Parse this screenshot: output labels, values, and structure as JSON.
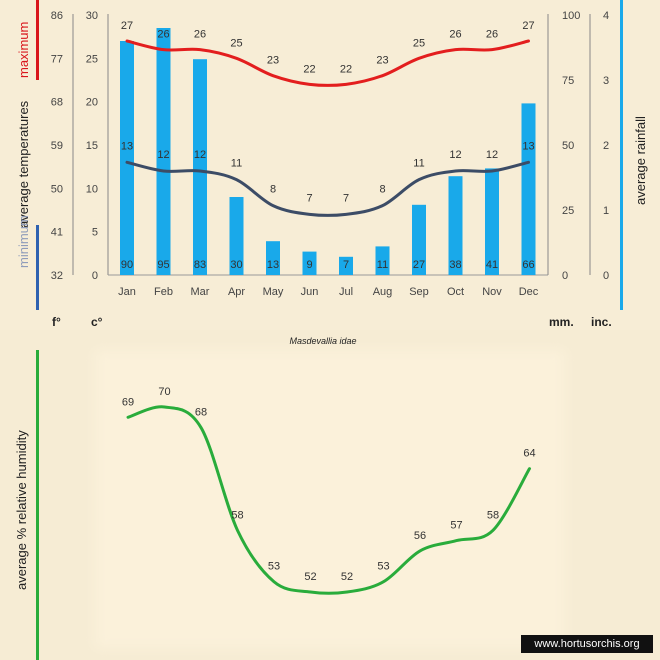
{
  "chart_data": [
    {
      "type": "bar",
      "title": "Masdevallia idae",
      "categories": [
        "Jan",
        "Feb",
        "Mar",
        "Apr",
        "May",
        "Jun",
        "Jul",
        "Aug",
        "Sep",
        "Oct",
        "Nov",
        "Dec"
      ],
      "series": [
        {
          "name": "average rainfall (mm.)",
          "kind": "bar",
          "axis": "rain",
          "values": [
            90,
            95,
            83,
            30,
            13,
            9,
            7,
            11,
            27,
            38,
            41,
            66
          ]
        },
        {
          "name": "maximum average temperature (c°)",
          "kind": "line",
          "axis": "temp",
          "values": [
            27,
            26,
            26,
            25,
            23,
            22,
            22,
            23,
            25,
            26,
            26,
            27
          ]
        },
        {
          "name": "minimum average temperature (c°)",
          "kind": "line",
          "axis": "temp",
          "values": [
            13,
            12,
            12,
            11,
            8,
            7,
            7,
            8,
            11,
            12,
            12,
            13
          ]
        }
      ],
      "axes": {
        "fahrenheit": {
          "ticks": [
            "86",
            "77",
            "68",
            "59",
            "50",
            "41",
            "32"
          ],
          "unit": "f°"
        },
        "celsius": {
          "ticks": [
            "30",
            "25",
            "20",
            "15",
            "10",
            "5",
            "0"
          ],
          "unit": "c°",
          "range": [
            0,
            30
          ]
        },
        "rain_mm": {
          "ticks": [
            "100",
            "75",
            "50",
            "25",
            "0"
          ],
          "unit": "mm.",
          "range": [
            0,
            100
          ]
        },
        "rain_inch": {
          "ticks": [
            "4",
            "3",
            "2",
            "1",
            "0"
          ],
          "unit": "inc."
        }
      },
      "ylabel_left_max": "maximum",
      "ylabel_left_mid": "average temperatures",
      "ylabel_left_min": "minimum",
      "ylabel_right": "average rainfall",
      "colors": {
        "bars": "#19a9ea",
        "max_line": "#e31e1e",
        "min_line": "#3c4c66",
        "bar_left_red": "#d9161c",
        "bar_left_blue": "#2f62b0",
        "bar_right": "#19a9ea"
      }
    },
    {
      "type": "line",
      "categories": [
        "Jan",
        "Feb",
        "Mar",
        "Apr",
        "May",
        "Jun",
        "Jul",
        "Aug",
        "Sep",
        "Oct",
        "Nov",
        "Dec"
      ],
      "series": [
        {
          "name": "average % relative humidity",
          "values": [
            69,
            70,
            68,
            58,
            53,
            52,
            52,
            53,
            56,
            57,
            58,
            64
          ]
        }
      ],
      "ylabel": "average %  relative humidity",
      "ylim": [
        48,
        74
      ],
      "colors": {
        "line": "#29ac3b",
        "bar_left": "#29ac3b"
      }
    }
  ],
  "footer": {
    "watermark": "www.hortusorchis.org"
  }
}
